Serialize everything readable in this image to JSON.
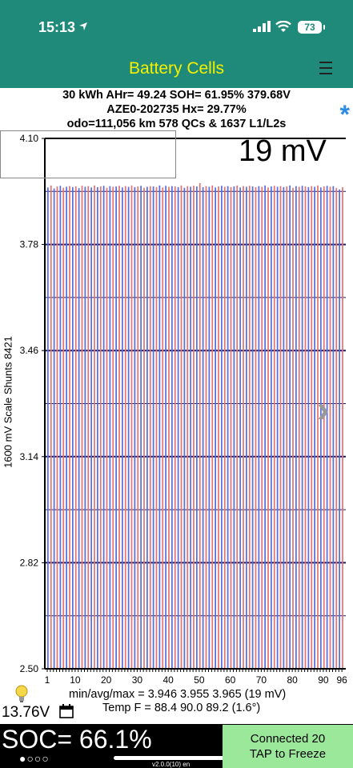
{
  "status": {
    "time": "15:13",
    "battery": "73"
  },
  "nav": {
    "title": "Battery Cells"
  },
  "info": {
    "line1": "30 kWh  AHr= 49.24  SOH= 61.95%   379.68V",
    "line2": "AZE0-202735   Hx= 29.77%",
    "line3": "odo=111,056 km 578 QCs & 1637 L1/L2s"
  },
  "spread_label": "19 mV",
  "side_label": "1600 mV Scale   Shunts 8421",
  "stats": {
    "line1": "min/avg/max = 3.946 3.955 3.965  (19 mV)",
    "line2": "Temp F = 88.4  90.0  89.2  (1.6°)"
  },
  "voltage": "13.76V",
  "soc": "SOC= 66.1%",
  "dots": "●○○○",
  "version": "v2.0.0(10) en",
  "connect": {
    "line1": "Connected 20",
    "line2": "TAP to Freeze"
  },
  "colors": {
    "header": "#1f8a7a",
    "title": "#f4f000",
    "blue": "#5a6ee0",
    "red": "#e57373",
    "button": "#9be89a"
  },
  "chart_data": {
    "type": "bar",
    "ylim": [
      2.5,
      4.1
    ],
    "yticks": [
      "4.10",
      "3.78",
      "3.46",
      "3.14",
      "2.82",
      "2.50"
    ],
    "xticks": [
      "1",
      "10",
      "20",
      "30",
      "40",
      "50",
      "60",
      "70",
      "80",
      "90",
      "96"
    ],
    "cell_count": 96,
    "values": [
      3.952,
      3.958,
      3.949,
      3.955,
      3.957,
      3.951,
      3.954,
      3.956,
      3.953,
      3.955,
      3.95,
      3.957,
      3.954,
      3.956,
      3.952,
      3.958,
      3.953,
      3.955,
      3.957,
      3.951,
      3.956,
      3.954,
      3.955,
      3.957,
      3.952,
      3.956,
      3.954,
      3.958,
      3.953,
      3.955,
      3.957,
      3.951,
      3.954,
      3.956,
      3.955,
      3.953,
      3.958,
      3.952,
      3.957,
      3.954,
      3.956,
      3.955,
      3.953,
      3.958,
      3.951,
      3.956,
      3.954,
      3.957,
      3.955,
      3.965,
      3.953,
      3.956,
      3.954,
      3.958,
      3.952,
      3.955,
      3.957,
      3.954,
      3.956,
      3.953,
      3.955,
      3.958,
      3.952,
      3.956,
      3.954,
      3.957,
      3.955,
      3.953,
      3.956,
      3.954,
      3.958,
      3.952,
      3.955,
      3.957,
      3.954,
      3.956,
      3.953,
      3.955,
      3.958,
      3.951,
      3.956,
      3.954,
      3.957,
      3.955,
      3.953,
      3.956,
      3.954,
      3.958,
      3.952,
      3.955,
      3.957,
      3.954,
      3.956,
      3.95,
      3.946,
      3.953
    ]
  }
}
